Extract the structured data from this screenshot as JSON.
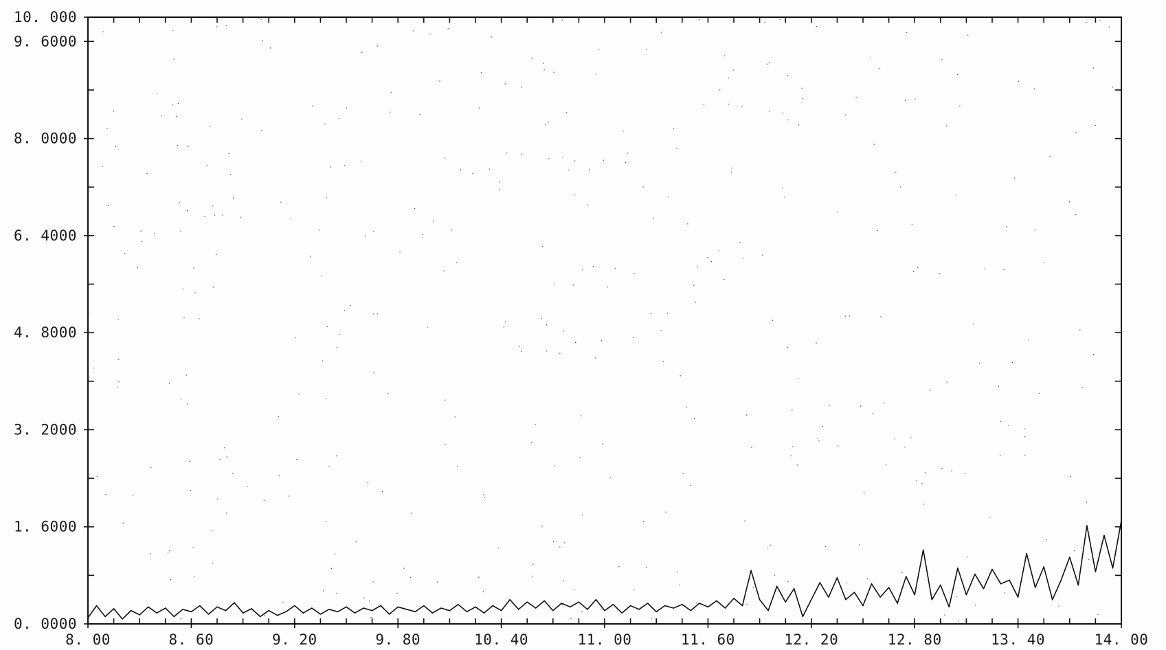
{
  "chart_data": {
    "type": "line",
    "title": "",
    "xlabel": "",
    "ylabel": "",
    "xlim": [
      8.0,
      14.0
    ],
    "ylim": [
      0.0,
      10.0
    ],
    "x_tick_labels": [
      "8. 00",
      "8. 60",
      "9. 20",
      "9. 80",
      "10. 40",
      "11. 00",
      "11. 60",
      "12. 20",
      "12. 80",
      "13. 40",
      "14. 00"
    ],
    "x_tick_values": [
      8.0,
      8.6,
      9.2,
      9.8,
      10.4,
      11.0,
      11.6,
      12.2,
      12.8,
      13.4,
      14.0
    ],
    "y_tick_labels": [
      "0. 0000",
      "1. 6000",
      "3. 2000",
      "4. 8000",
      "6. 4000",
      "8. 0000",
      "9. 6000",
      "10. 000"
    ],
    "y_tick_values": [
      0.0,
      1.6,
      3.2,
      4.8,
      6.4,
      8.0,
      9.6,
      10.0
    ],
    "grid": false,
    "line_color": "#111111",
    "series": [
      {
        "x": [
          8.0,
          8.05,
          8.1,
          8.15,
          8.2,
          8.25,
          8.3,
          8.35,
          8.4,
          8.45,
          8.5,
          8.55,
          8.6,
          8.65,
          8.7,
          8.75,
          8.8,
          8.85,
          8.9,
          8.95,
          9.0,
          9.05,
          9.1,
          9.15,
          9.2,
          9.25,
          9.3,
          9.35,
          9.4,
          9.45,
          9.5,
          9.55,
          9.6,
          9.65,
          9.7,
          9.75,
          9.8,
          9.85,
          9.9,
          9.95,
          10.0,
          10.05,
          10.1,
          10.15,
          10.2,
          10.25,
          10.3,
          10.35,
          10.4,
          10.45,
          10.5,
          10.55,
          10.6,
          10.65,
          10.7,
          10.75,
          10.8,
          10.85,
          10.9,
          10.95,
          11.0,
          11.05,
          11.1,
          11.15,
          11.2,
          11.25,
          11.3,
          11.35,
          11.4,
          11.45,
          11.5,
          11.55,
          11.6,
          11.65,
          11.7,
          11.75,
          11.8,
          11.85,
          11.9,
          11.95,
          12.0,
          12.05,
          12.1,
          12.15,
          12.2,
          12.25,
          12.3,
          12.35,
          12.4,
          12.45,
          12.5,
          12.55,
          12.6,
          12.65,
          12.7,
          12.75,
          12.8,
          12.85,
          12.9,
          12.95,
          13.0,
          13.05,
          13.1,
          13.15,
          13.2,
          13.25,
          13.3,
          13.35,
          13.4,
          13.45,
          13.5,
          13.55,
          13.6,
          13.65,
          13.7,
          13.75,
          13.8,
          13.85,
          13.9,
          13.95,
          14.0
        ],
        "y": [
          0.1,
          0.3,
          0.12,
          0.25,
          0.08,
          0.22,
          0.15,
          0.28,
          0.18,
          0.26,
          0.12,
          0.24,
          0.2,
          0.3,
          0.16,
          0.28,
          0.22,
          0.35,
          0.18,
          0.25,
          0.12,
          0.22,
          0.14,
          0.2,
          0.3,
          0.18,
          0.26,
          0.16,
          0.24,
          0.2,
          0.28,
          0.18,
          0.26,
          0.22,
          0.3,
          0.16,
          0.28,
          0.24,
          0.2,
          0.3,
          0.18,
          0.26,
          0.22,
          0.32,
          0.2,
          0.28,
          0.18,
          0.3,
          0.22,
          0.4,
          0.24,
          0.36,
          0.26,
          0.38,
          0.22,
          0.34,
          0.28,
          0.36,
          0.24,
          0.4,
          0.22,
          0.32,
          0.18,
          0.3,
          0.24,
          0.34,
          0.2,
          0.3,
          0.26,
          0.32,
          0.22,
          0.34,
          0.28,
          0.38,
          0.26,
          0.42,
          0.3,
          0.88,
          0.4,
          0.22,
          0.62,
          0.36,
          0.58,
          0.12,
          0.4,
          0.68,
          0.44,
          0.76,
          0.4,
          0.52,
          0.3,
          0.66,
          0.44,
          0.6,
          0.34,
          0.78,
          0.48,
          1.22,
          0.4,
          0.64,
          0.28,
          0.92,
          0.48,
          0.82,
          0.58,
          0.9,
          0.66,
          0.72,
          0.44,
          1.16,
          0.6,
          0.94,
          0.4,
          0.72,
          1.1,
          0.64,
          1.62,
          0.86,
          1.46,
          0.92,
          1.7
        ]
      }
    ]
  }
}
